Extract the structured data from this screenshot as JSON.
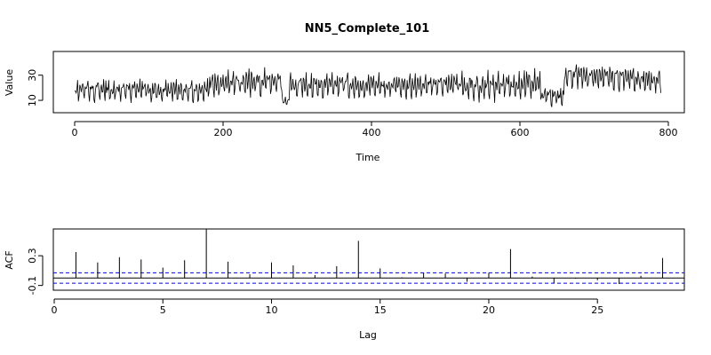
{
  "chart_data": [
    {
      "type": "line",
      "title": "NN5_Complete_101",
      "xlabel": "Time",
      "ylabel": "Value",
      "xlim": [
        0,
        791
      ],
      "ylim": [
        3,
        46
      ],
      "x_ticks": [
        0,
        200,
        400,
        600,
        800
      ],
      "y_ticks": [
        10,
        30
      ],
      "grid": false,
      "n_points": 791,
      "series": [
        {
          "color": "#000000",
          "segments": [
            {
              "x_start": 0,
              "x_end": 180,
              "mean": 18,
              "amplitude": 9,
              "trend": 0
            },
            {
              "x_start": 180,
              "x_end": 280,
              "mean": 24,
              "amplitude": 11,
              "trend": 4
            },
            {
              "x_start": 280,
              "x_end": 290,
              "mean": 9,
              "amplitude": 5,
              "trend": 0
            },
            {
              "x_start": 290,
              "x_end": 520,
              "mean": 22,
              "amplitude": 10,
              "trend": 0
            },
            {
              "x_start": 520,
              "x_end": 630,
              "mean": 22,
              "amplitude": 12,
              "trend": 2
            },
            {
              "x_start": 630,
              "x_end": 660,
              "mean": 13,
              "amplitude": 8,
              "trend": 0
            },
            {
              "x_start": 660,
              "x_end": 791,
              "mean": 28,
              "amplitude": 10,
              "trend": -4
            }
          ],
          "weekly_period": 7
        }
      ]
    },
    {
      "type": "bar",
      "xlabel": "Lag",
      "ylabel": "ACF",
      "xlim": [
        0,
        29
      ],
      "ylim": [
        -0.14,
        0.66
      ],
      "x_ticks": [
        0,
        5,
        10,
        15,
        20,
        25
      ],
      "y_ticks": [
        -0.1,
        0.3
      ],
      "confidence_band": 0.07,
      "band_color": "#0000ff",
      "lags": [
        1,
        2,
        3,
        4,
        5,
        6,
        7,
        8,
        9,
        10,
        11,
        12,
        13,
        14,
        15,
        16,
        17,
        18,
        19,
        20,
        21,
        22,
        23,
        24,
        25,
        26,
        27,
        28
      ],
      "values": [
        0.35,
        0.21,
        0.28,
        0.25,
        0.14,
        0.24,
        0.66,
        0.22,
        0.05,
        0.21,
        0.17,
        0.04,
        0.16,
        0.5,
        0.13,
        0.01,
        0.07,
        0.06,
        -0.05,
        0.07,
        0.39,
        0.02,
        -0.07,
        -0.01,
        -0.03,
        -0.08,
        0.03,
        0.27
      ]
    }
  ]
}
